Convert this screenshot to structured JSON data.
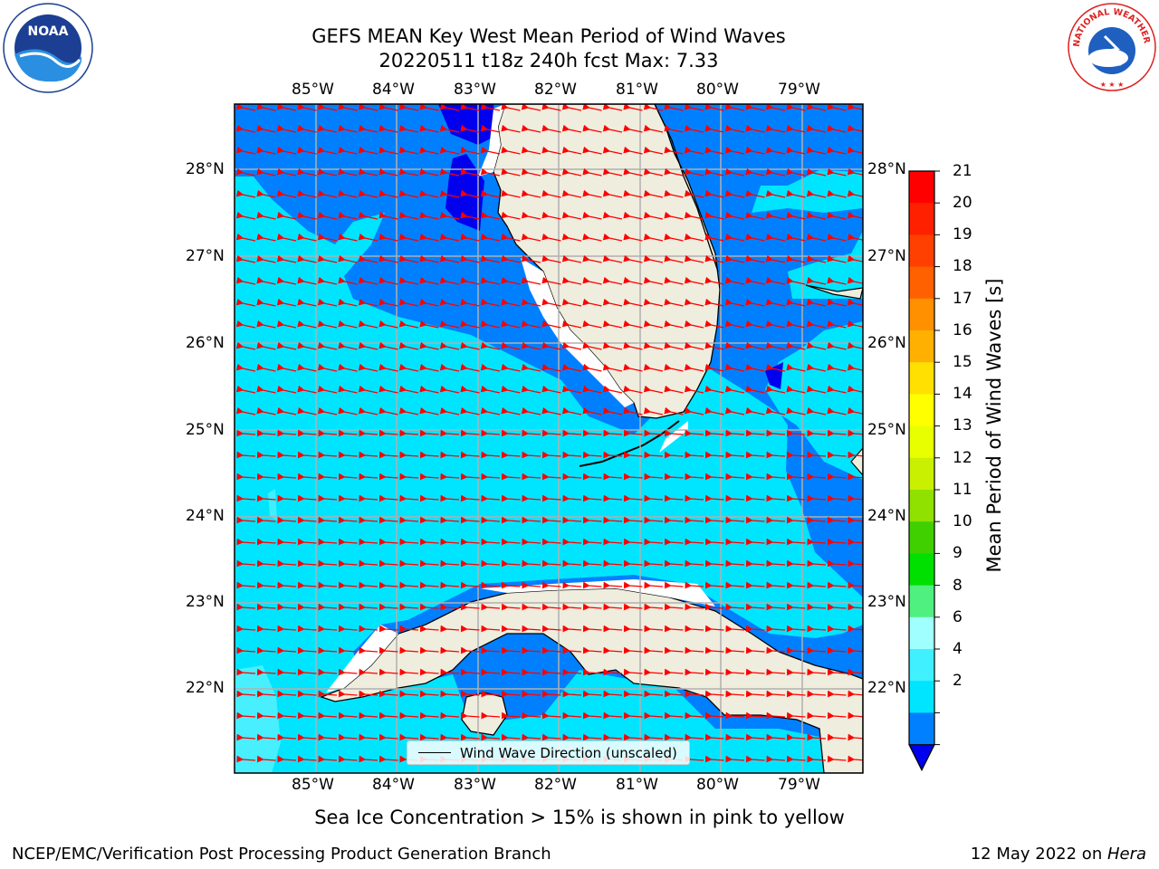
{
  "title": {
    "line1": "GEFS MEAN Key West Mean Period of Wind Waves",
    "line2": "20220511 t18z 240h fcst   Max: 7.33"
  },
  "logos": {
    "noaa": "NOAA",
    "nws": "NATIONAL WEATHER SERVICE"
  },
  "map": {
    "lon_labels": [
      "85°W",
      "84°W",
      "83°W",
      "82°W",
      "81°W",
      "80°W",
      "79°W"
    ],
    "lat_labels": [
      "28°N",
      "27°N",
      "26°N",
      "25°N",
      "24°N",
      "23°N",
      "22°N"
    ],
    "lon_range": [
      -86.0,
      -78.3
    ],
    "lat_range": [
      21.1,
      28.7
    ]
  },
  "colorbar": {
    "ticks": [
      "21",
      "20",
      "19",
      "18",
      "17",
      "16",
      "15",
      "14",
      "13",
      "12",
      "11",
      "10",
      "9",
      "8",
      "6",
      "4",
      "2"
    ],
    "label": "Mean Period of Wind Waves [s]",
    "colors": [
      "#0000ee",
      "#0080ff",
      "#00e5ff",
      "#40f0ff",
      "#a0ffff",
      "#50f080",
      "#00e000",
      "#40d000",
      "#90e000",
      "#c8f000",
      "#e8ff00",
      "#ffff00",
      "#ffe000",
      "#ffb000",
      "#ff9000",
      "#ff6000",
      "#ff4000",
      "#ff2000",
      "#ff0000"
    ]
  },
  "legend": {
    "label": "Wind Wave Direction (unscaled)"
  },
  "ice_note": "Sea Ice Concentration > 15% is shown in pink to yellow",
  "footer": {
    "left": "NCEP/EMC/Verification Post Processing Product Generation Branch",
    "right_date": "12 May 2022 on ",
    "right_host": "Hera"
  }
}
